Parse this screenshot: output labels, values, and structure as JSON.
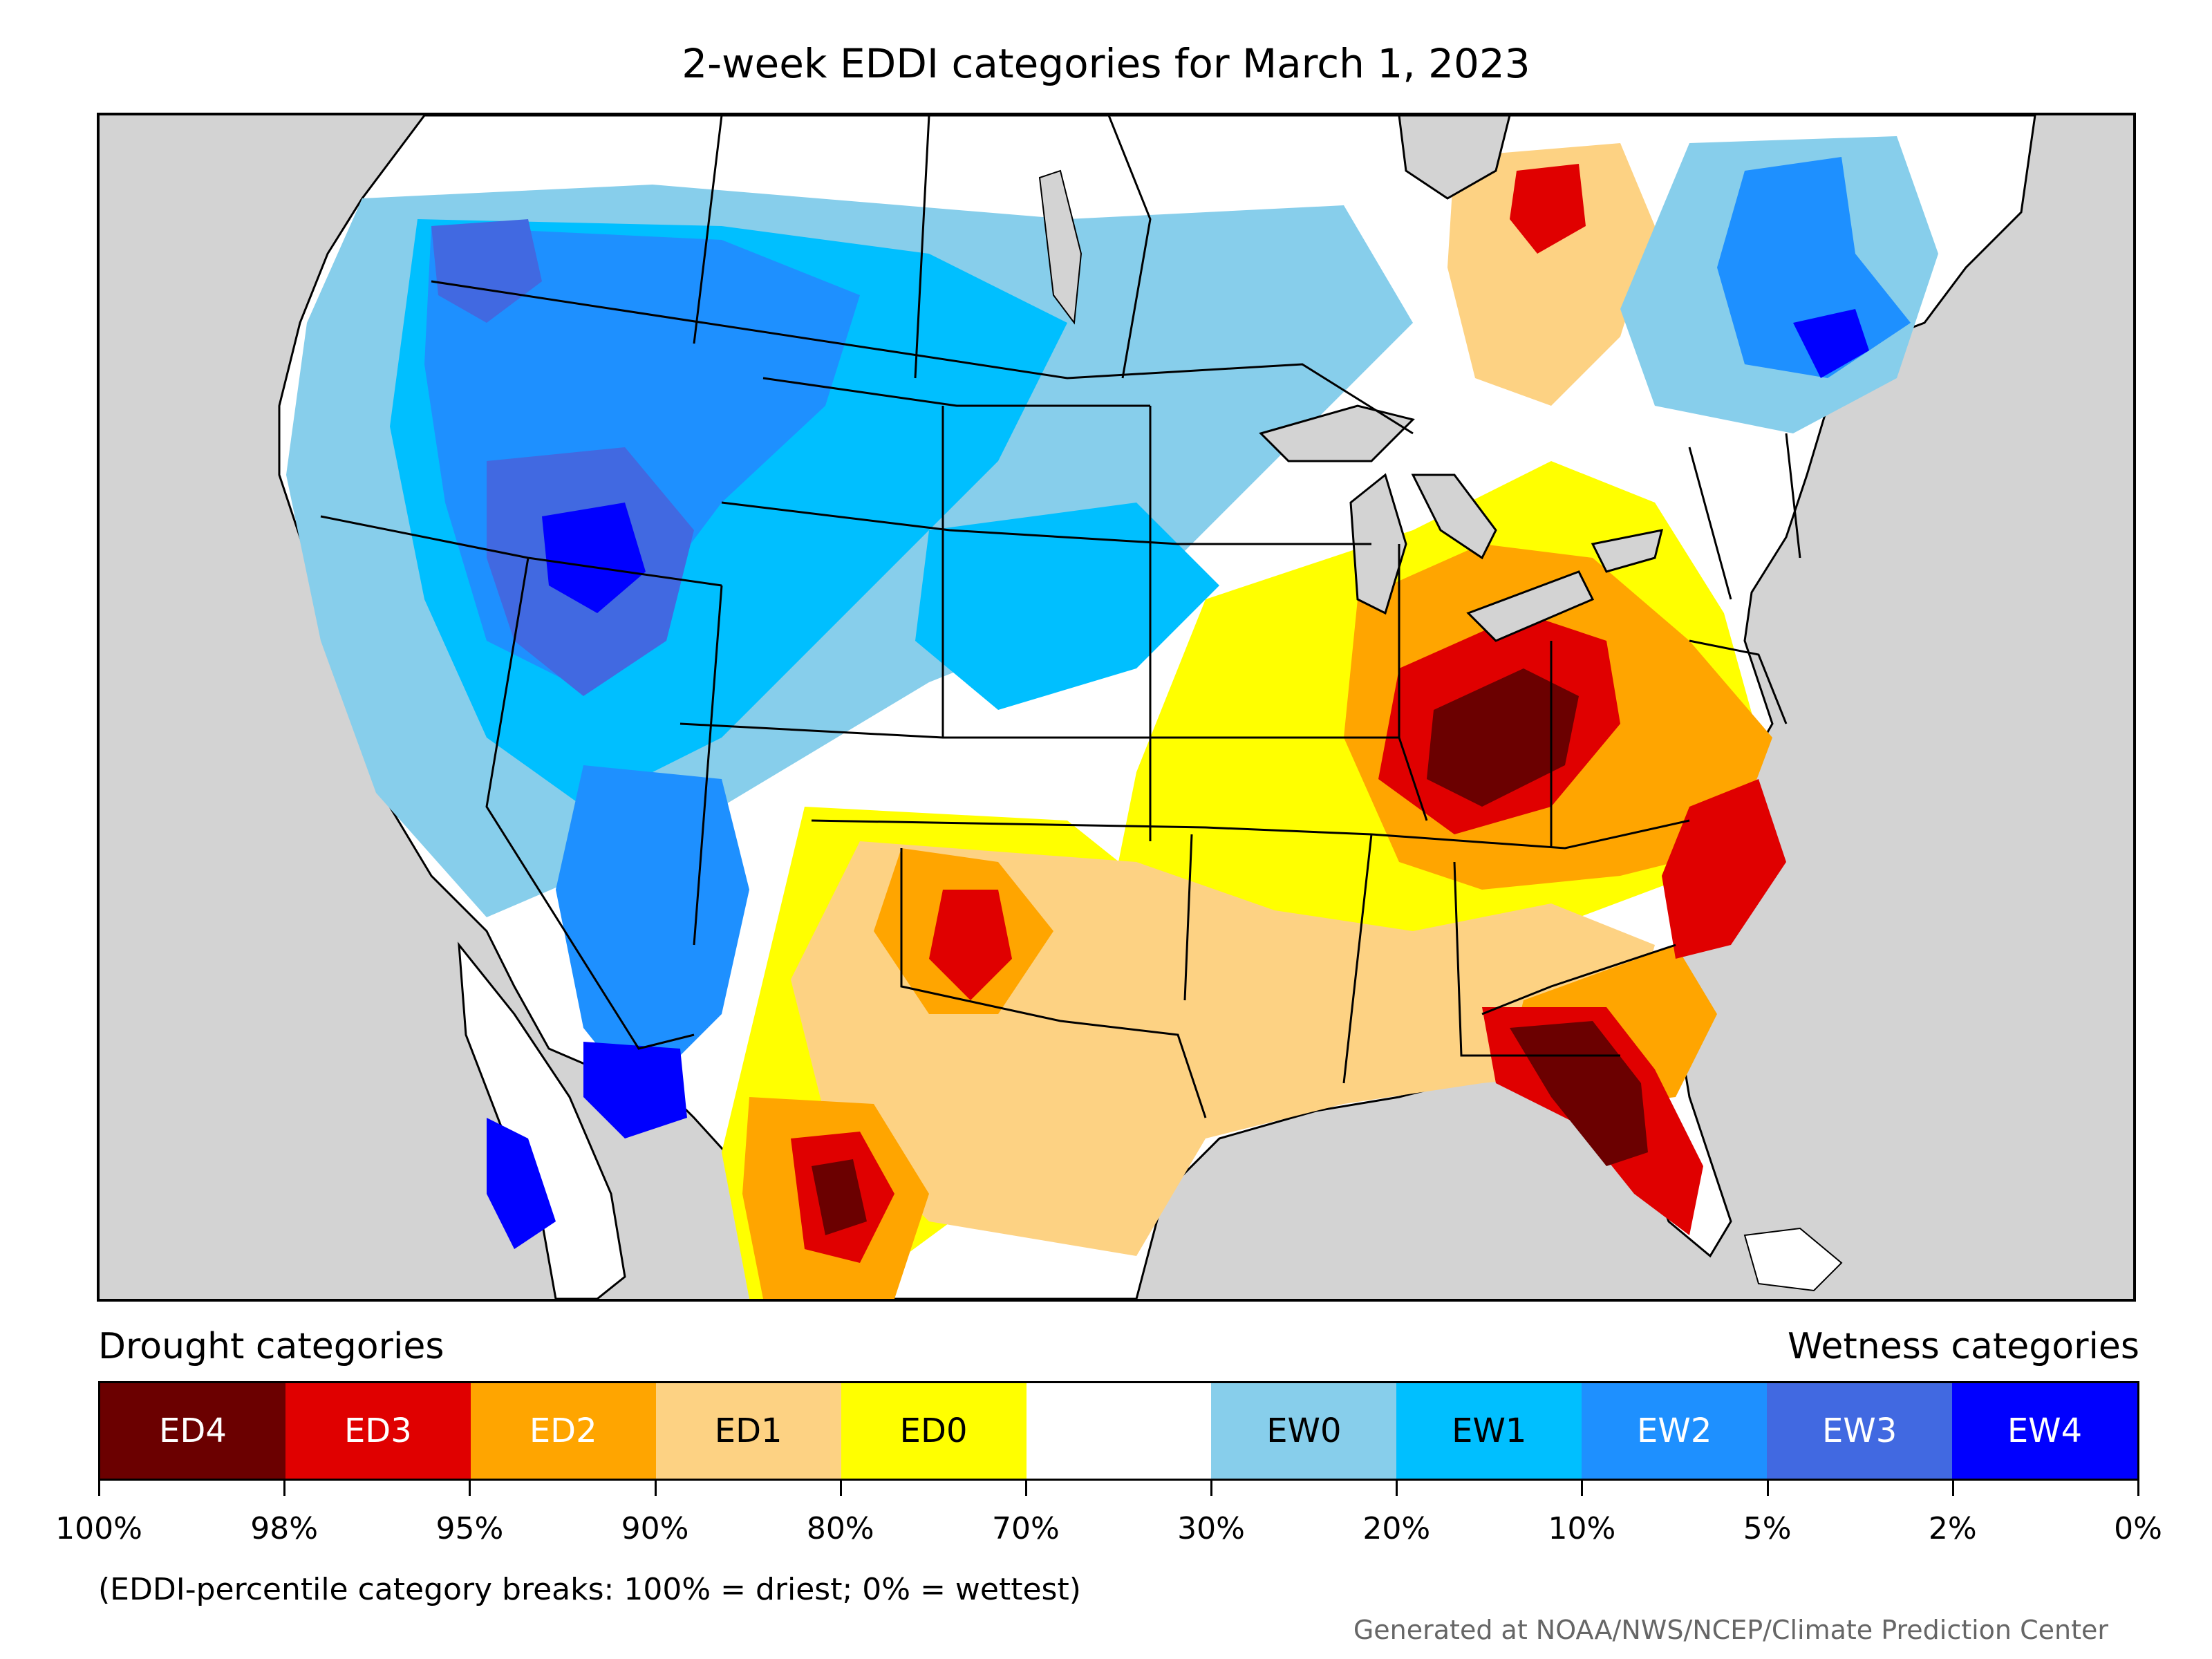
{
  "title": "2-week EDDI categories for March 1, 2023",
  "legend": {
    "drought_heading": "Drought categories",
    "wetness_heading": "Wetness categories",
    "categories": [
      {
        "label": "ED4",
        "color": "#6b0000",
        "text_color": "#ffffff"
      },
      {
        "label": "ED3",
        "color": "#e00000",
        "text_color": "#ffffff"
      },
      {
        "label": "ED2",
        "color": "#ffa500",
        "text_color": "#ffffff"
      },
      {
        "label": "ED1",
        "color": "#fdd283",
        "text_color": "#000000"
      },
      {
        "label": "ED0",
        "color": "#ffff00",
        "text_color": "#000000"
      },
      {
        "label": "",
        "color": "#ffffff",
        "text_color": "#000000"
      },
      {
        "label": "EW0",
        "color": "#87ceeb",
        "text_color": "#000000"
      },
      {
        "label": "EW1",
        "color": "#00bfff",
        "text_color": "#000000"
      },
      {
        "label": "EW2",
        "color": "#1e90ff",
        "text_color": "#ffffff"
      },
      {
        "label": "EW3",
        "color": "#4169e1",
        "text_color": "#ffffff"
      },
      {
        "label": "EW4",
        "color": "#0000ff",
        "text_color": "#ffffff"
      }
    ],
    "breaks": [
      "100%",
      "98%",
      "95%",
      "90%",
      "80%",
      "70%",
      "30%",
      "20%",
      "10%",
      "5%",
      "2%",
      "0%"
    ]
  },
  "note": "(EDDI-percentile category breaks: 100% = driest; 0% = wettest)",
  "credit": "Generated at NOAA/NWS/NCEP/Climate Prediction Center",
  "map": {
    "background_color": "#d3d3d3",
    "land_color": "#ffffff",
    "outline_color": "#000000"
  }
}
